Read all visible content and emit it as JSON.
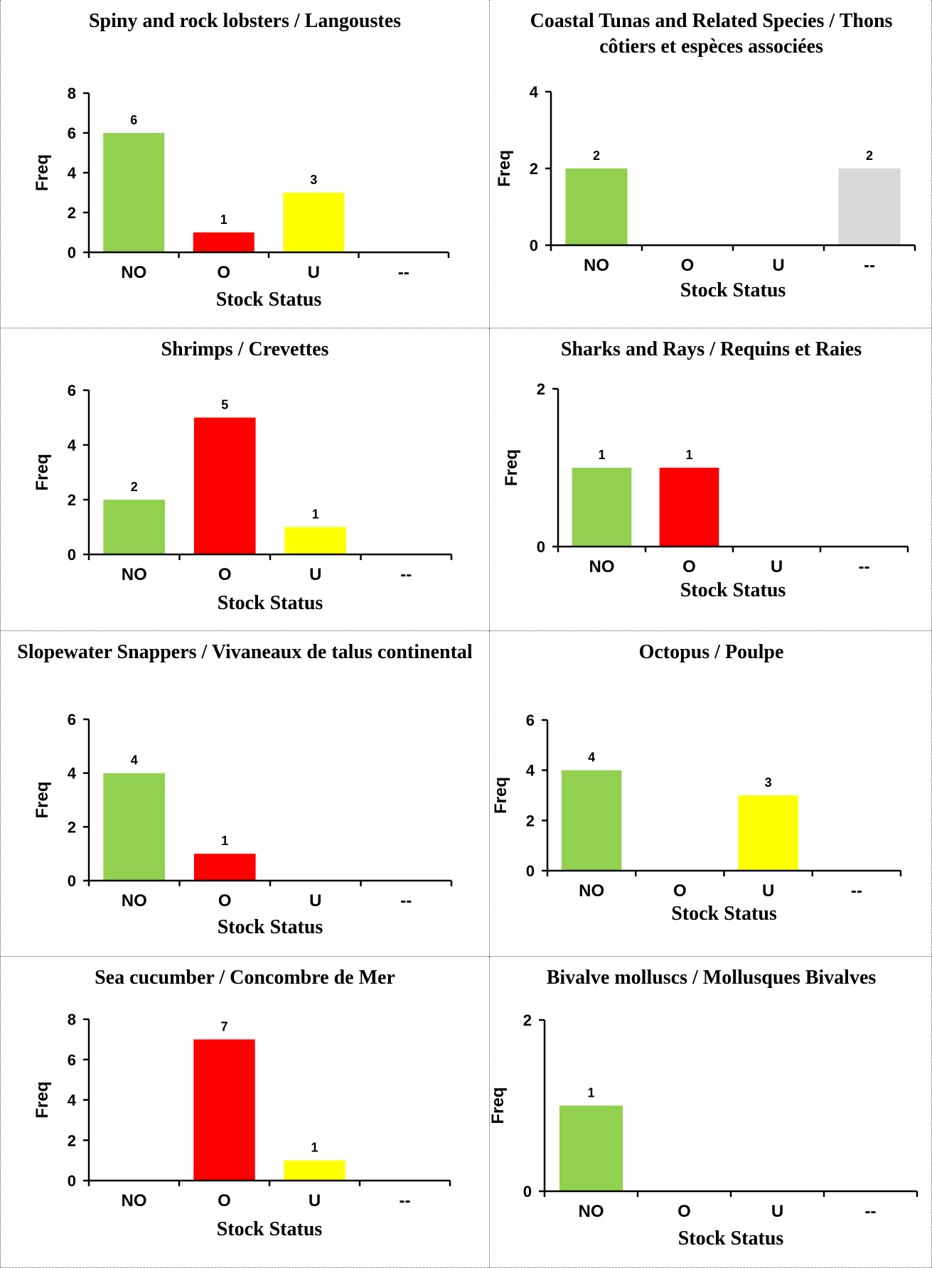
{
  "chart_data": [
    {
      "type": "bar",
      "title": "Spiny and rock lobsters / Langoustes",
      "xlabel": "Stock Status",
      "ylabel": "Freq",
      "categories": [
        "NO",
        "O",
        "U",
        "--"
      ],
      "values": [
        6,
        1,
        3,
        0
      ],
      "data_labels": [
        "6",
        "1",
        "3",
        ""
      ],
      "bar_colors": [
        "#92d050",
        "#ff0000",
        "#ffff00",
        "#d9d9d9"
      ],
      "ylim": [
        0,
        8
      ],
      "yticks": [
        0,
        2,
        4,
        6,
        8
      ],
      "grid": false,
      "legend": "none"
    },
    {
      "type": "bar",
      "title": "Coastal Tunas and Related Species / Thons côtiers et espèces associées",
      "xlabel": "Stock Status",
      "ylabel": "Freq",
      "categories": [
        "NO",
        "O",
        "U",
        "--"
      ],
      "values": [
        2,
        0,
        0,
        2
      ],
      "data_labels": [
        "2",
        "",
        "",
        "2"
      ],
      "bar_colors": [
        "#92d050",
        "#ff0000",
        "#ffff00",
        "#d9d9d9"
      ],
      "ylim": [
        0,
        4
      ],
      "yticks": [
        0,
        2,
        4
      ],
      "grid": false,
      "legend": "none"
    },
    {
      "type": "bar",
      "title": "Shrimps / Crevettes",
      "xlabel": "Stock Status",
      "ylabel": "Freq",
      "categories": [
        "NO",
        "O",
        "U",
        "--"
      ],
      "values": [
        2,
        5,
        1,
        0
      ],
      "data_labels": [
        "2",
        "5",
        "1",
        ""
      ],
      "bar_colors": [
        "#92d050",
        "#ff0000",
        "#ffff00",
        "#d9d9d9"
      ],
      "ylim": [
        0,
        6
      ],
      "yticks": [
        0,
        2,
        4,
        6
      ],
      "grid": false,
      "legend": "none"
    },
    {
      "type": "bar",
      "title": "Sharks and Rays / Requins et Raies",
      "xlabel": "Stock Status",
      "ylabel": "Freq",
      "categories": [
        "NO",
        "O",
        "U",
        "--"
      ],
      "values": [
        1,
        1,
        0,
        0
      ],
      "data_labels": [
        "1",
        "1",
        "",
        ""
      ],
      "bar_colors": [
        "#92d050",
        "#ff0000",
        "#ffff00",
        "#d9d9d9"
      ],
      "ylim": [
        0,
        2
      ],
      "yticks": [
        0,
        2
      ],
      "grid": false,
      "legend": "none"
    },
    {
      "type": "bar",
      "title": "Slopewater Snappers / Vivaneaux de talus continental",
      "xlabel": "Stock Status",
      "ylabel": "Freq",
      "categories": [
        "NO",
        "O",
        "U",
        "--"
      ],
      "values": [
        4,
        1,
        0,
        0
      ],
      "data_labels": [
        "4",
        "1",
        "",
        ""
      ],
      "bar_colors": [
        "#92d050",
        "#ff0000",
        "#ffff00",
        "#d9d9d9"
      ],
      "ylim": [
        0,
        6
      ],
      "yticks": [
        0,
        2,
        4,
        6
      ],
      "grid": false,
      "legend": "none"
    },
    {
      "type": "bar",
      "title": "Octopus / Poulpe",
      "xlabel": "Stock Status",
      "ylabel": "Freq",
      "categories": [
        "NO",
        "O",
        "U",
        "--"
      ],
      "values": [
        4,
        0,
        3,
        0
      ],
      "data_labels": [
        "4",
        "",
        "3",
        ""
      ],
      "bar_colors": [
        "#92d050",
        "#ff0000",
        "#ffff00",
        "#d9d9d9"
      ],
      "ylim": [
        0,
        6
      ],
      "yticks": [
        0,
        2,
        4,
        6
      ],
      "grid": false,
      "legend": "none"
    },
    {
      "type": "bar",
      "title": "Sea cucumber / Concombre de Mer",
      "xlabel": "Stock Status",
      "ylabel": "Freq",
      "categories": [
        "NO",
        "O",
        "U",
        "--"
      ],
      "values": [
        0,
        7,
        1,
        0
      ],
      "data_labels": [
        "",
        "7",
        "1",
        ""
      ],
      "bar_colors": [
        "#92d050",
        "#ff0000",
        "#ffff00",
        "#d9d9d9"
      ],
      "ylim": [
        0,
        8
      ],
      "yticks": [
        0,
        2,
        4,
        6,
        8
      ],
      "grid": false,
      "legend": "none"
    },
    {
      "type": "bar",
      "title": "Bivalve molluscs / Mollusques Bivalves",
      "xlabel": "Stock Status",
      "ylabel": "Freq",
      "categories": [
        "NO",
        "O",
        "U",
        "--"
      ],
      "values": [
        1,
        0,
        0,
        0
      ],
      "data_labels": [
        "1",
        "",
        "",
        ""
      ],
      "bar_colors": [
        "#92d050",
        "#ff0000",
        "#ffff00",
        "#d9d9d9"
      ],
      "ylim": [
        0,
        2
      ],
      "yticks": [
        0,
        2
      ],
      "grid": false,
      "legend": "none"
    }
  ]
}
